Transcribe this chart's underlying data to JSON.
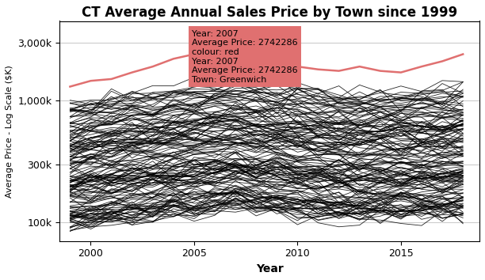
{
  "title": "CT Average Annual Sales Price by Town since 1999",
  "xlabel": "Year",
  "ylabel": "Average Price - Log Scale ($K)",
  "years": [
    1999,
    2000,
    2001,
    2002,
    2003,
    2004,
    2005,
    2006,
    2007,
    2008,
    2009,
    2010,
    2011,
    2012,
    2013,
    2014,
    2015,
    2016,
    2017,
    2018
  ],
  "greenwich": [
    1300000,
    1450000,
    1500000,
    1700000,
    1900000,
    2200000,
    2400000,
    2600000,
    2742286,
    2500000,
    2100000,
    1900000,
    1800000,
    1750000,
    1900000,
    1750000,
    1700000,
    1900000,
    2100000,
    2400000
  ],
  "annotation_text": "Year: 2007\nAverage Price: 2742286\ncolour: red\nYear: 2007\nAverage Price: 2742286\nTown: Greenwich",
  "annotation_bg": "#e07070",
  "background_color": "#ffffff",
  "grid_color": "#cccccc",
  "num_towns": 160,
  "seed": 42,
  "ylim": [
    70000,
    4500000
  ],
  "yticks": [
    100000,
    300000,
    1000000,
    3000000
  ],
  "ytick_labels": [
    "100k",
    "300k",
    "1,000k",
    "3,000k"
  ],
  "xlim": [
    1998.5,
    2018.8
  ],
  "xticks": [
    2000,
    2005,
    2010,
    2015
  ],
  "red_color": "#e07070",
  "black_color": "#000000",
  "black_lw": 0.6,
  "black_alpha": 0.85,
  "red_lw": 1.8
}
